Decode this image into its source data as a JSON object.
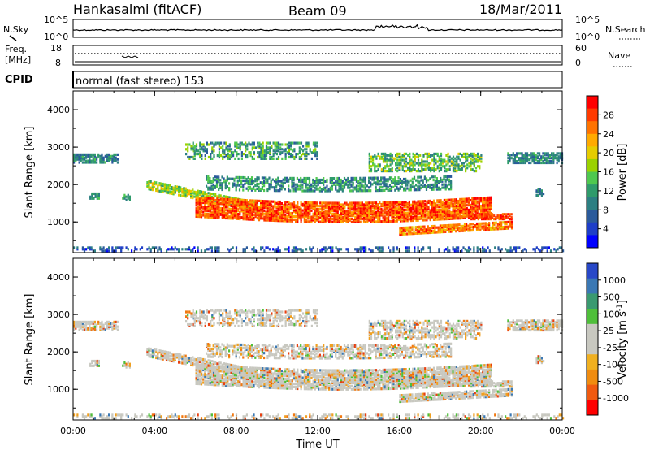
{
  "header": {
    "station": "Hankasalmi (fitACF)",
    "beam": "Beam 09",
    "date": "18/Mar/2011"
  },
  "noise_panel": {
    "left_label": "N.Sky",
    "right_label": "N.Search",
    "left_ticks": [
      "10^5",
      "10^0"
    ],
    "right_ticks": [
      "10^5",
      "10^0"
    ]
  },
  "freq_panel": {
    "left_label_line1": "Freq.",
    "left_label_line2": "[MHz]",
    "right_label": "Nave",
    "left_ticks": [
      "18",
      "8"
    ],
    "right_ticks": [
      "60",
      "0"
    ]
  },
  "cpid": {
    "label": "CPID",
    "value": "normal (fast stereo) 153"
  },
  "chart_data": [
    {
      "type": "heatmap",
      "title": "Power",
      "ylabel": "Slant Range [km]",
      "xlabel": "",
      "colorbar_label": "Power [dB]",
      "colorbar_ticks": [
        "28",
        "24",
        "20",
        "16",
        "12",
        "8",
        "4"
      ],
      "colorbar_colors": [
        "#ff0000",
        "#ff3a00",
        "#ff7300",
        "#ffaa00",
        "#e6cc00",
        "#9bd200",
        "#4fc84f",
        "#2f9b6b",
        "#2c7f82",
        "#2a5a9b",
        "#1e3ec8",
        "#0000ff"
      ],
      "yticks": [
        "4000",
        "3000",
        "2000",
        "1000"
      ],
      "ylim": [
        180,
        4500
      ],
      "xlim": [
        "00:00",
        "24:00"
      ],
      "grid": false
    },
    {
      "type": "heatmap",
      "title": "Velocity",
      "ylabel": "Slant Range [km]",
      "xlabel": "Time UT",
      "colorbar_label": "Velocity [m s^-1]",
      "colorbar_ticks": [
        "1000",
        "500",
        "100",
        "25",
        "-25",
        "-100",
        "-500",
        "-1000"
      ],
      "colorbar_colors": [
        "#2848c8",
        "#3a78b4",
        "#3a9a70",
        "#4fbf3a",
        "#c8c8c0",
        "#c8c8c0",
        "#f0b020",
        "#f08c10",
        "#f05a10",
        "#ff0000"
      ],
      "yticks": [
        "4000",
        "3000",
        "2000",
        "1000"
      ],
      "xticks": [
        "00:00",
        "04:00",
        "08:00",
        "12:00",
        "16:00",
        "20:00",
        "00:00"
      ],
      "ylim": [
        180,
        4500
      ],
      "xlim": [
        "00:00",
        "24:00"
      ],
      "grid": false
    }
  ]
}
